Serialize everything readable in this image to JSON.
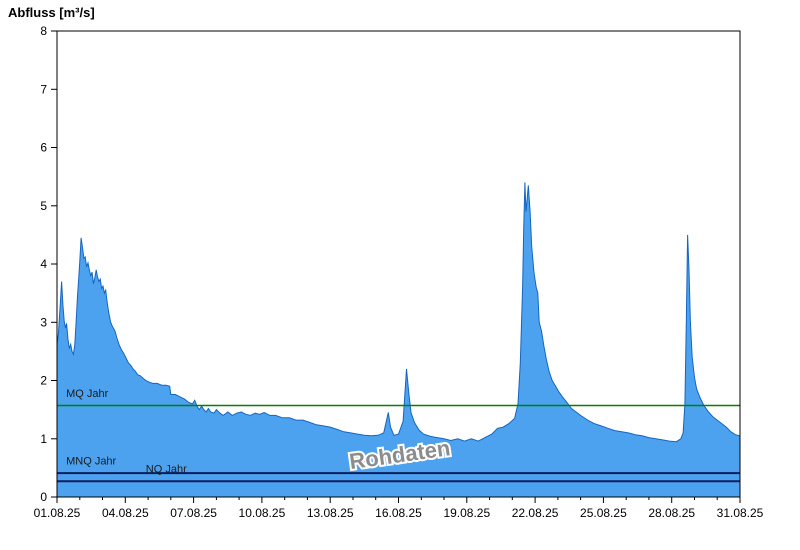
{
  "chart_data": {
    "type": "area",
    "title": "Abfluss [m³/s]",
    "ylabel": "Abfluss [m³/s]",
    "xlabel": "",
    "grid": false,
    "x_range": [
      1,
      31
    ],
    "y_range": [
      0,
      8
    ],
    "y_ticks": [
      0,
      1,
      2,
      3,
      4,
      5,
      6,
      7,
      8
    ],
    "x_tick_days": [
      1,
      4,
      7,
      10,
      13,
      16,
      19,
      22,
      25,
      28,
      31
    ],
    "x_tick_labels": [
      "01.08.25",
      "04.08.25",
      "07.08.25",
      "10.08.25",
      "13.08.25",
      "16.08.25",
      "19.08.25",
      "22.08.25",
      "25.08.25",
      "28.08.25",
      "31.08.25"
    ],
    "series": [
      {
        "name": "Abfluss Rohdaten",
        "fill_color": "#4da2f0",
        "edge_color": "#1565c0",
        "points": [
          [
            1.0,
            2.62
          ],
          [
            1.06,
            2.8
          ],
          [
            1.1,
            3.05
          ],
          [
            1.16,
            3.4
          ],
          [
            1.2,
            3.7
          ],
          [
            1.26,
            3.3
          ],
          [
            1.32,
            3.0
          ],
          [
            1.38,
            2.9
          ],
          [
            1.42,
            2.98
          ],
          [
            1.48,
            2.72
          ],
          [
            1.54,
            2.55
          ],
          [
            1.6,
            2.62
          ],
          [
            1.66,
            2.5
          ],
          [
            1.72,
            2.45
          ],
          [
            1.78,
            2.62
          ],
          [
            1.84,
            3.0
          ],
          [
            1.9,
            3.45
          ],
          [
            1.96,
            3.8
          ],
          [
            2.0,
            4.05
          ],
          [
            2.06,
            4.45
          ],
          [
            2.12,
            4.28
          ],
          [
            2.18,
            4.1
          ],
          [
            2.24,
            4.12
          ],
          [
            2.3,
            3.95
          ],
          [
            2.36,
            4.02
          ],
          [
            2.42,
            3.9
          ],
          [
            2.48,
            3.8
          ],
          [
            2.54,
            3.86
          ],
          [
            2.6,
            3.66
          ],
          [
            2.66,
            3.76
          ],
          [
            2.72,
            3.9
          ],
          [
            2.78,
            3.78
          ],
          [
            2.84,
            3.7
          ],
          [
            2.9,
            3.74
          ],
          [
            2.96,
            3.58
          ],
          [
            3.02,
            3.62
          ],
          [
            3.08,
            3.5
          ],
          [
            3.14,
            3.55
          ],
          [
            3.2,
            3.35
          ],
          [
            3.28,
            3.15
          ],
          [
            3.36,
            3.0
          ],
          [
            3.44,
            2.92
          ],
          [
            3.54,
            2.86
          ],
          [
            3.64,
            2.72
          ],
          [
            3.74,
            2.6
          ],
          [
            3.84,
            2.52
          ],
          [
            3.94,
            2.46
          ],
          [
            4.04,
            2.38
          ],
          [
            4.14,
            2.3
          ],
          [
            4.24,
            2.26
          ],
          [
            4.34,
            2.2
          ],
          [
            4.44,
            2.16
          ],
          [
            4.54,
            2.1
          ],
          [
            4.66,
            2.08
          ],
          [
            4.78,
            2.04
          ],
          [
            4.9,
            2.0
          ],
          [
            5.05,
            1.97
          ],
          [
            5.2,
            1.95
          ],
          [
            5.4,
            1.95
          ],
          [
            5.6,
            1.92
          ],
          [
            5.8,
            1.92
          ],
          [
            5.95,
            1.9
          ],
          [
            6.0,
            1.76
          ],
          [
            6.2,
            1.76
          ],
          [
            6.4,
            1.72
          ],
          [
            6.6,
            1.68
          ],
          [
            6.8,
            1.62
          ],
          [
            6.95,
            1.6
          ],
          [
            7.05,
            1.66
          ],
          [
            7.15,
            1.56
          ],
          [
            7.25,
            1.5
          ],
          [
            7.35,
            1.56
          ],
          [
            7.45,
            1.5
          ],
          [
            7.55,
            1.46
          ],
          [
            7.65,
            1.52
          ],
          [
            7.75,
            1.46
          ],
          [
            7.9,
            1.44
          ],
          [
            8.0,
            1.5
          ],
          [
            8.15,
            1.44
          ],
          [
            8.3,
            1.4
          ],
          [
            8.5,
            1.46
          ],
          [
            8.7,
            1.4
          ],
          [
            8.9,
            1.44
          ],
          [
            9.1,
            1.46
          ],
          [
            9.3,
            1.42
          ],
          [
            9.5,
            1.4
          ],
          [
            9.7,
            1.44
          ],
          [
            9.9,
            1.42
          ],
          [
            10.1,
            1.45
          ],
          [
            10.35,
            1.4
          ],
          [
            10.6,
            1.4
          ],
          [
            10.9,
            1.36
          ],
          [
            11.2,
            1.36
          ],
          [
            11.5,
            1.32
          ],
          [
            11.8,
            1.32
          ],
          [
            12.1,
            1.28
          ],
          [
            12.4,
            1.24
          ],
          [
            12.7,
            1.22
          ],
          [
            13.0,
            1.2
          ],
          [
            13.3,
            1.16
          ],
          [
            13.6,
            1.12
          ],
          [
            13.9,
            1.1
          ],
          [
            14.2,
            1.08
          ],
          [
            14.5,
            1.06
          ],
          [
            14.8,
            1.05
          ],
          [
            15.1,
            1.06
          ],
          [
            15.35,
            1.1
          ],
          [
            15.55,
            1.45
          ],
          [
            15.65,
            1.2
          ],
          [
            15.8,
            1.06
          ],
          [
            16.0,
            1.08
          ],
          [
            16.2,
            1.3
          ],
          [
            16.35,
            2.2
          ],
          [
            16.45,
            1.8
          ],
          [
            16.55,
            1.45
          ],
          [
            16.7,
            1.28
          ],
          [
            16.9,
            1.15
          ],
          [
            17.1,
            1.08
          ],
          [
            17.4,
            1.04
          ],
          [
            17.7,
            1.02
          ],
          [
            18.0,
            1.0
          ],
          [
            18.3,
            0.97
          ],
          [
            18.6,
            1.0
          ],
          [
            18.9,
            0.96
          ],
          [
            19.2,
            1.0
          ],
          [
            19.5,
            0.96
          ],
          [
            19.8,
            1.02
          ],
          [
            20.1,
            1.08
          ],
          [
            20.35,
            1.18
          ],
          [
            20.6,
            1.2
          ],
          [
            20.85,
            1.26
          ],
          [
            21.1,
            1.35
          ],
          [
            21.25,
            1.6
          ],
          [
            21.35,
            2.3
          ],
          [
            21.45,
            3.6
          ],
          [
            21.5,
            4.6
          ],
          [
            21.55,
            5.4
          ],
          [
            21.6,
            4.9
          ],
          [
            21.65,
            5.1
          ],
          [
            21.7,
            5.35
          ],
          [
            21.78,
            4.9
          ],
          [
            21.85,
            4.3
          ],
          [
            21.95,
            3.85
          ],
          [
            22.05,
            3.6
          ],
          [
            22.12,
            3.5
          ],
          [
            22.18,
            3.0
          ],
          [
            22.28,
            2.85
          ],
          [
            22.38,
            2.6
          ],
          [
            22.5,
            2.35
          ],
          [
            22.62,
            2.15
          ],
          [
            22.75,
            2.0
          ],
          [
            22.9,
            1.9
          ],
          [
            23.05,
            1.8
          ],
          [
            23.2,
            1.72
          ],
          [
            23.4,
            1.62
          ],
          [
            23.6,
            1.52
          ],
          [
            23.8,
            1.46
          ],
          [
            24.0,
            1.4
          ],
          [
            24.3,
            1.32
          ],
          [
            24.6,
            1.26
          ],
          [
            24.9,
            1.22
          ],
          [
            25.2,
            1.18
          ],
          [
            25.5,
            1.14
          ],
          [
            25.8,
            1.12
          ],
          [
            26.1,
            1.1
          ],
          [
            26.4,
            1.07
          ],
          [
            26.7,
            1.05
          ],
          [
            27.0,
            1.02
          ],
          [
            27.3,
            1.0
          ],
          [
            27.6,
            0.98
          ],
          [
            27.9,
            0.96
          ],
          [
            28.2,
            0.95
          ],
          [
            28.4,
            1.0
          ],
          [
            28.5,
            1.1
          ],
          [
            28.58,
            1.6
          ],
          [
            28.64,
            3.0
          ],
          [
            28.7,
            4.5
          ],
          [
            28.76,
            3.9
          ],
          [
            28.82,
            3.0
          ],
          [
            28.9,
            2.4
          ],
          [
            29.0,
            2.05
          ],
          [
            29.1,
            1.85
          ],
          [
            29.25,
            1.7
          ],
          [
            29.4,
            1.58
          ],
          [
            29.6,
            1.47
          ],
          [
            29.8,
            1.38
          ],
          [
            30.0,
            1.32
          ],
          [
            30.2,
            1.26
          ],
          [
            30.4,
            1.2
          ],
          [
            30.6,
            1.12
          ],
          [
            30.8,
            1.07
          ],
          [
            31.0,
            1.05
          ]
        ]
      }
    ],
    "reference_lines": [
      {
        "id": "mq-jahr",
        "label": "MQ Jahr",
        "value": 1.57,
        "color": "#008000",
        "width": 1.4,
        "label_day": 1.4,
        "label_value": 1.72,
        "label_color": "#1a1a1a"
      },
      {
        "id": "mnq-jahr",
        "label": "MNQ Jahr",
        "value": 0.41,
        "color": "#0a1e5e",
        "width": 2,
        "label_day": 1.4,
        "label_value": 0.56,
        "label_color": "#1a1a1a"
      },
      {
        "id": "nq-jahr",
        "label": "NQ Jahr",
        "value": 0.27,
        "color": "#0a1e5e",
        "width": 2,
        "label_day": 4.9,
        "label_value": 0.42,
        "label_color": "#1a1a1a"
      }
    ],
    "watermark": {
      "text": "Rohdaten",
      "day": 16.1,
      "value": 0.6,
      "rotation": -8,
      "font_size": 22,
      "color": "#8c8c8c"
    },
    "legend_position": "none"
  }
}
